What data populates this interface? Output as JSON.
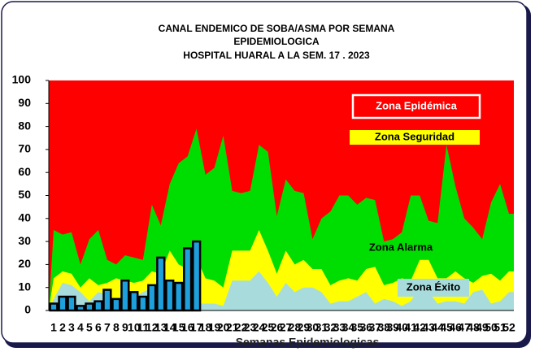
{
  "chart_data": {
    "type": "endemic-channel",
    "title": [
      "CANAL ENDEMICO DE SOBA/ASMA POR SEMANA",
      "EPIDEMIOLOGICA",
      "HOSPITAL HUARAL A LA SEM. 17 . 2023"
    ],
    "x_label": "Semanas Epidemiologicas",
    "categories": [
      1,
      2,
      3,
      4,
      5,
      6,
      7,
      8,
      9,
      10,
      11,
      12,
      13,
      14,
      15,
      16,
      17,
      18,
      19,
      20,
      21,
      22,
      23,
      24,
      25,
      26,
      27,
      28,
      29,
      30,
      31,
      32,
      33,
      34,
      35,
      36,
      37,
      38,
      39,
      40,
      41,
      42,
      43,
      44,
      45,
      46,
      47,
      48,
      49,
      50,
      51,
      52
    ],
    "ylim": [
      0,
      100
    ],
    "yticks": [
      0,
      10,
      20,
      30,
      40,
      50,
      60,
      70,
      80,
      90,
      100
    ],
    "zones": [
      {
        "name": "Zona Epidémica",
        "color": "#ff0000"
      },
      {
        "name": "Zona Alarma",
        "color": "#00dd00",
        "values": [
          35,
          33,
          34,
          20,
          31,
          35,
          22,
          20,
          24,
          23,
          22,
          46,
          37,
          55,
          64,
          67,
          79,
          59,
          62,
          76,
          52,
          51,
          52,
          72,
          69,
          41,
          57,
          52,
          51,
          31,
          40,
          43,
          50,
          50,
          46,
          49,
          48,
          30,
          31,
          34,
          50,
          50,
          39,
          38,
          72,
          54,
          40,
          36,
          31,
          47,
          55,
          42
        ]
      },
      {
        "name": "Zona Seguridad",
        "color": "#ffff00",
        "values": [
          14,
          17,
          16,
          10,
          14,
          11,
          12,
          14,
          13,
          12,
          13,
          17,
          16,
          26,
          20,
          18,
          23,
          14,
          13,
          10,
          26,
          26,
          26,
          35,
          26,
          16,
          26,
          20,
          22,
          18,
          18,
          11,
          13,
          14,
          13,
          18,
          19,
          11,
          12,
          14,
          13,
          22,
          22,
          14,
          14,
          17,
          14,
          12,
          15,
          16,
          13,
          17
        ]
      },
      {
        "name": "Zona Éxito",
        "color": "#a8dcdc",
        "values": [
          5,
          12,
          11,
          8,
          4,
          8,
          7,
          4,
          5,
          6,
          8,
          10,
          12,
          8,
          7,
          12,
          3,
          3,
          3,
          2,
          13,
          13,
          13,
          17,
          12,
          6,
          12,
          8,
          10,
          10,
          8,
          3,
          4,
          4,
          6,
          8,
          3,
          5,
          4,
          2,
          4,
          10,
          8,
          3,
          4,
          4,
          3,
          8,
          9,
          3,
          4,
          8
        ]
      }
    ],
    "cases": {
      "color": "#1ea0dc",
      "values": [
        3,
        6,
        6,
        2,
        3,
        4,
        9,
        5,
        13,
        8,
        6,
        11,
        23,
        13,
        12,
        27,
        30
      ]
    }
  }
}
